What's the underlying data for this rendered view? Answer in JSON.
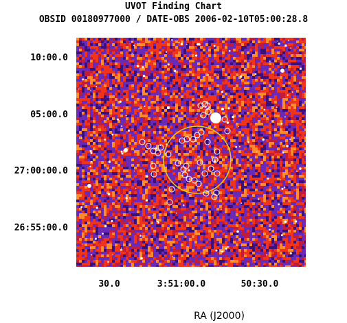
{
  "chart": {
    "title": "UVOT Finding Chart",
    "subtitle": "OBSID 00180977000 / DATE-OBS 2006-02-10T05:00:28.8",
    "xlabel": "RA (J2000)",
    "y_ticks": [
      "10:00.0",
      "05:00.0",
      "27:00:00.0",
      "26:55:00.0"
    ],
    "x_ticks": [
      "30.0",
      "3:51:00.0",
      "50:30.0"
    ]
  },
  "colors": {
    "background": "#ffffff",
    "image_base": "#c21c3c",
    "image_red": "#f0341c",
    "image_violet": "#6a2ab8",
    "image_dark": "#3a107a",
    "image_orange": "#ff8c2a",
    "star": "#ffffff",
    "error_circle": "#e8d21a",
    "source_marker": "#ffffff"
  },
  "icons": [
    "error-circle",
    "source-marker",
    "star"
  ]
}
